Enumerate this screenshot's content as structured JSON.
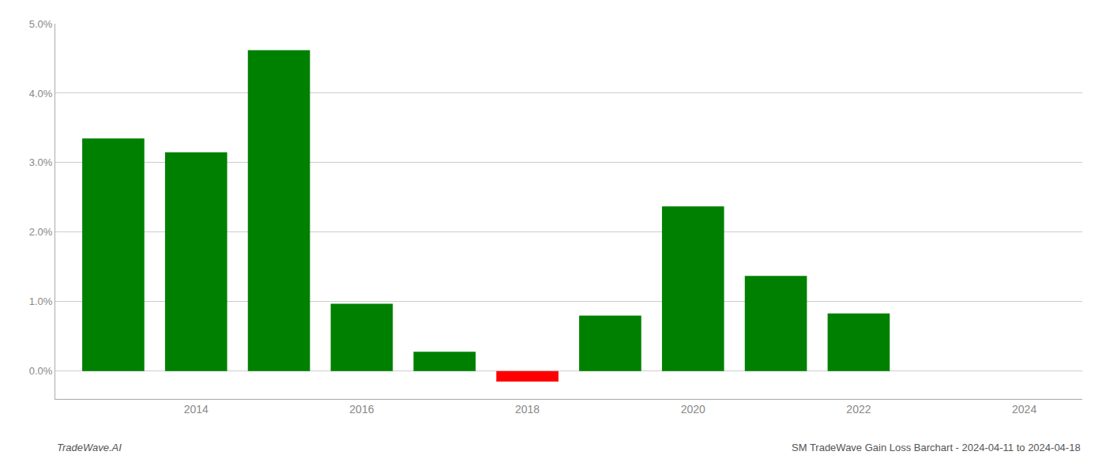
{
  "chart_data": {
    "type": "bar",
    "x": [
      2013,
      2014,
      2015,
      2016,
      2017,
      2018,
      2019,
      2020,
      2021,
      2022,
      2023
    ],
    "values": [
      0.0335,
      0.0315,
      0.0462,
      0.0097,
      0.0028,
      -0.0015,
      0.008,
      0.0237,
      0.0137,
      0.0083,
      0.0
    ],
    "colors": [
      "#008000",
      "#008000",
      "#008000",
      "#008000",
      "#008000",
      "#ff0000",
      "#008000",
      "#008000",
      "#008000",
      "#008000",
      "#008000"
    ],
    "xlim": [
      2012.3,
      2024.7
    ],
    "xticks": [
      2014,
      2016,
      2018,
      2020,
      2022,
      2024
    ],
    "ylim": [
      -0.004,
      0.05
    ],
    "yticks": [
      {
        "value": 0,
        "label": "0.0%"
      },
      {
        "value": 0.01,
        "label": "1.0%"
      },
      {
        "value": 0.02,
        "label": "2.0%"
      },
      {
        "value": 0.03,
        "label": "3.0%"
      },
      {
        "value": 0.04,
        "label": "4.0%"
      },
      {
        "value": 0.05,
        "label": "5.0%"
      }
    ],
    "grid": true,
    "annotations": [
      {
        "text": "TradeWave.AI"
      },
      {
        "text": "SM TradeWave Gain Loss Barchart - 2024-04-11 to 2024-04-18"
      }
    ]
  }
}
